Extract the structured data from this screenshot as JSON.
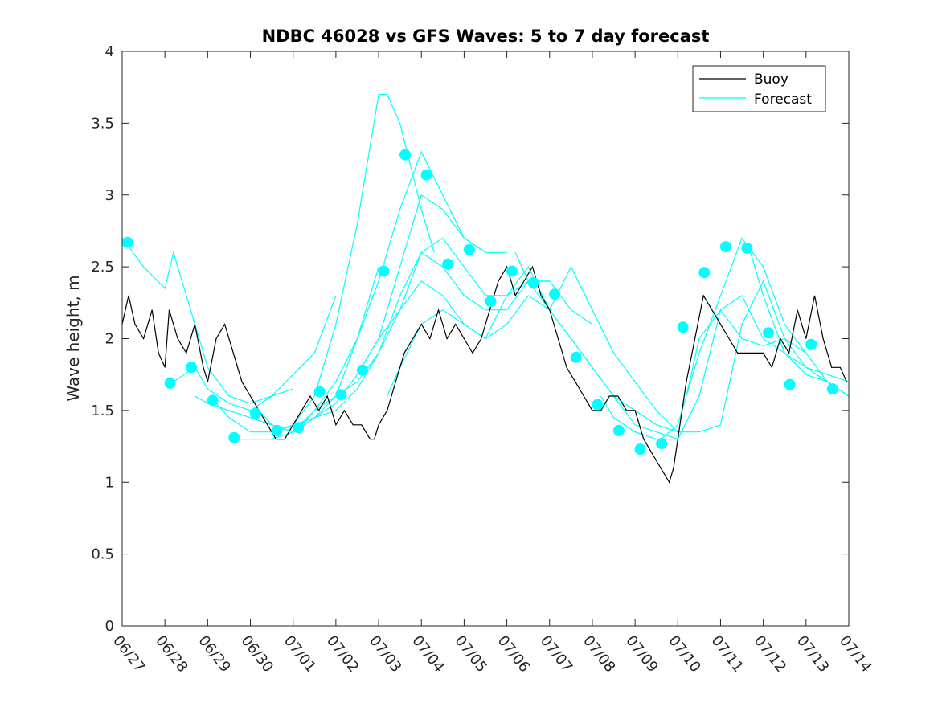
{
  "chart_data": {
    "type": "line",
    "title": "NDBC 46028 vs GFS Waves: 5 to 7 day forecast",
    "ylabel": "Wave height, m",
    "xlabel": "",
    "ylim": [
      0,
      4
    ],
    "xlim": [
      "06/27",
      "07/14"
    ],
    "yticks": [
      0,
      0.5,
      1,
      1.5,
      2,
      2.5,
      3,
      3.5,
      4
    ],
    "xtick_labels": [
      "06/27",
      "06/28",
      "06/29",
      "06/30",
      "07/01",
      "07/02",
      "07/03",
      "07/04",
      "07/05",
      "07/06",
      "07/07",
      "07/08",
      "07/09",
      "07/10",
      "07/11",
      "07/12",
      "07/13",
      "07/14"
    ],
    "grid": false,
    "legend": {
      "position": "top-right",
      "entries": [
        "Buoy",
        "Forecast"
      ]
    },
    "colors": {
      "buoy": "#000000",
      "forecast": "#00ffff"
    },
    "buoy": {
      "name": "Buoy",
      "x_days": [
        0.0,
        0.15,
        0.3,
        0.5,
        0.7,
        0.85,
        1.0,
        1.1,
        1.3,
        1.5,
        1.7,
        1.9,
        2.0,
        2.2,
        2.4,
        2.6,
        2.8,
        3.0,
        3.2,
        3.4,
        3.6,
        3.8,
        4.0,
        4.2,
        4.4,
        4.6,
        4.8,
        5.0,
        5.2,
        5.4,
        5.6,
        5.8,
        5.9,
        6.0,
        6.2,
        6.4,
        6.6,
        6.8,
        7.0,
        7.2,
        7.4,
        7.6,
        7.8,
        8.0,
        8.2,
        8.4,
        8.6,
        8.8,
        9.0,
        9.2,
        9.4,
        9.6,
        9.8,
        10.0,
        10.2,
        10.4,
        10.6,
        10.8,
        11.0,
        11.2,
        11.4,
        11.6,
        11.8,
        12.0,
        12.2,
        12.4,
        12.6,
        12.8,
        12.9,
        13.0,
        13.2,
        13.4,
        13.6,
        13.8,
        14.0,
        14.2,
        14.4,
        14.6,
        14.8,
        15.0,
        15.2,
        15.4,
        15.6,
        15.8,
        16.0,
        16.2,
        16.4,
        16.6,
        16.8,
        16.95
      ],
      "values": [
        2.1,
        2.3,
        2.1,
        2.0,
        2.2,
        1.9,
        1.8,
        2.2,
        2.0,
        1.9,
        2.1,
        1.8,
        1.7,
        2.0,
        2.1,
        1.9,
        1.7,
        1.6,
        1.5,
        1.4,
        1.3,
        1.3,
        1.4,
        1.5,
        1.6,
        1.5,
        1.6,
        1.4,
        1.5,
        1.4,
        1.4,
        1.3,
        1.3,
        1.4,
        1.5,
        1.7,
        1.9,
        2.0,
        2.1,
        2.0,
        2.2,
        2.0,
        2.1,
        2.0,
        1.9,
        2.0,
        2.2,
        2.4,
        2.5,
        2.3,
        2.4,
        2.5,
        2.3,
        2.2,
        2.0,
        1.8,
        1.7,
        1.6,
        1.5,
        1.5,
        1.6,
        1.6,
        1.5,
        1.5,
        1.3,
        1.2,
        1.1,
        1.0,
        1.1,
        1.3,
        1.7,
        2.0,
        2.3,
        2.2,
        2.1,
        2.0,
        1.9,
        1.9,
        1.9,
        1.9,
        1.8,
        2.0,
        1.9,
        2.2,
        2.0,
        2.3,
        2.0,
        1.8,
        1.8,
        1.7
      ]
    },
    "forecast_runs": [
      {
        "x_days": [
          0.0,
          0.5,
          1.0,
          1.2,
          1.5,
          2.0,
          2.5,
          3.0,
          3.5,
          4.0
        ],
        "values": [
          2.7,
          2.5,
          2.35,
          2.6,
          2.3,
          1.8,
          1.6,
          1.55,
          1.6,
          1.65
        ]
      },
      {
        "x_days": [
          1.2,
          1.7,
          2.0,
          2.5,
          3.0,
          3.5,
          4.0,
          4.5,
          5.0
        ],
        "values": [
          1.7,
          1.8,
          1.65,
          1.55,
          1.5,
          1.6,
          1.75,
          1.9,
          2.3
        ]
      },
      {
        "x_days": [
          1.7,
          2.0,
          2.5,
          3.0,
          3.5,
          4.0,
          4.5,
          5.0,
          5.5,
          6.0
        ],
        "values": [
          1.6,
          1.55,
          1.5,
          1.45,
          1.4,
          1.35,
          1.45,
          1.6,
          2.0,
          2.5
        ]
      },
      {
        "x_days": [
          2.2,
          2.5,
          3.0,
          3.5,
          4.0,
          4.5,
          5.0,
          5.5,
          6.0,
          6.2,
          6.5,
          7.0,
          7.3
        ],
        "values": [
          1.55,
          1.45,
          1.35,
          1.35,
          1.4,
          1.6,
          2.1,
          2.8,
          3.7,
          3.7,
          3.5,
          2.9,
          2.6
        ]
      },
      {
        "x_days": [
          2.7,
          3.0,
          3.5,
          4.0,
          4.5,
          5.0,
          5.5,
          6.0,
          6.5,
          7.0,
          7.5,
          8.0,
          8.5
        ],
        "values": [
          1.3,
          1.3,
          1.3,
          1.35,
          1.5,
          1.7,
          2.0,
          2.4,
          2.9,
          3.3,
          3.0,
          2.7,
          2.6
        ]
      },
      {
        "x_days": [
          3.2,
          3.5,
          4.0,
          4.5,
          5.0,
          5.5,
          6.0,
          6.5,
          7.0,
          7.5,
          8.0,
          8.5,
          9.0
        ],
        "values": [
          1.5,
          1.4,
          1.35,
          1.45,
          1.55,
          1.75,
          2.0,
          2.5,
          3.0,
          2.9,
          2.7,
          2.6,
          2.6
        ]
      },
      {
        "x_days": [
          3.6,
          4.0,
          4.5,
          5.0,
          5.5,
          6.0,
          6.5,
          7.0,
          7.5,
          8.0,
          8.5,
          9.0,
          9.5,
          10.0
        ],
        "values": [
          1.35,
          1.4,
          1.45,
          1.5,
          1.65,
          1.9,
          2.2,
          2.6,
          2.7,
          2.5,
          2.3,
          2.3,
          2.4,
          2.4
        ]
      },
      {
        "x_days": [
          4.2,
          4.5,
          5.0,
          5.5,
          6.0,
          6.5,
          7.0,
          7.5,
          8.0,
          8.5,
          9.0,
          9.5,
          10.0,
          10.5,
          11.0
        ],
        "values": [
          1.4,
          1.5,
          1.6,
          1.7,
          1.9,
          2.3,
          2.6,
          2.5,
          2.3,
          2.2,
          2.2,
          2.4,
          2.4,
          2.2,
          2.1
        ]
      },
      {
        "x_days": [
          5.6,
          6.0,
          6.5,
          7.0,
          7.5,
          8.0,
          8.5,
          9.0,
          9.5,
          10.0,
          10.5,
          11.0,
          11.5,
          12.0,
          12.5,
          13.0
        ],
        "values": [
          1.8,
          2.0,
          2.2,
          2.4,
          2.3,
          2.1,
          2.0,
          2.3,
          2.5,
          2.2,
          2.0,
          1.8,
          1.6,
          1.5,
          1.4,
          1.35
        ]
      },
      {
        "x_days": [
          6.2,
          6.5,
          7.0,
          7.5,
          8.0,
          8.5,
          9.0,
          9.5,
          10.0,
          10.5,
          11.0,
          11.5,
          12.0,
          12.5,
          13.0
        ],
        "values": [
          1.6,
          1.8,
          2.1,
          2.2,
          2.1,
          2.0,
          2.1,
          2.3,
          2.2,
          2.0,
          1.8,
          1.6,
          1.4,
          1.35,
          1.3
        ]
      },
      {
        "x_days": [
          9.2,
          9.5,
          10.0,
          10.5,
          11.0,
          11.5,
          12.0,
          12.5,
          13.0,
          13.5,
          14.0,
          14.5,
          15.0,
          15.5,
          16.0
        ],
        "values": [
          2.6,
          2.4,
          2.2,
          2.5,
          2.2,
          1.9,
          1.7,
          1.5,
          1.35,
          1.35,
          1.4,
          2.1,
          2.4,
          2.0,
          1.9
        ]
      },
      {
        "x_days": [
          11.2,
          11.5,
          12.0,
          12.5,
          13.0,
          13.5,
          14.0,
          14.5,
          15.0,
          15.5,
          16.0,
          16.5,
          17.0
        ],
        "values": [
          1.6,
          1.45,
          1.35,
          1.3,
          1.3,
          1.6,
          2.2,
          2.3,
          2.0,
          1.9,
          1.8,
          1.7,
          1.6
        ]
      },
      {
        "x_days": [
          12.6,
          13.0,
          13.5,
          14.0,
          14.5,
          15.0,
          15.5,
          16.0,
          16.5,
          17.0
        ],
        "values": [
          1.3,
          1.4,
          1.9,
          2.3,
          2.7,
          2.5,
          2.1,
          1.9,
          1.7,
          1.6
        ]
      },
      {
        "x_days": [
          13.2,
          13.5,
          14.0,
          14.5,
          15.0,
          15.5,
          16.0,
          16.5,
          17.0
        ],
        "values": [
          1.6,
          2.0,
          2.2,
          2.0,
          1.95,
          2.0,
          1.8,
          1.75,
          1.7
        ]
      },
      {
        "x_days": [
          14.7,
          15.0,
          15.5,
          16.0,
          16.5,
          17.0
        ],
        "values": [
          2.6,
          2.3,
          1.9,
          1.75,
          1.7,
          1.6
        ]
      }
    ],
    "forecast_points": {
      "x_days": [
        0.12,
        1.12,
        1.62,
        2.12,
        2.62,
        3.12,
        3.62,
        4.12,
        4.62,
        5.12,
        5.62,
        6.12,
        6.62,
        7.12,
        7.62,
        8.12,
        8.62,
        9.12,
        9.62,
        10.12,
        10.62,
        11.12,
        11.62,
        12.12,
        12.62,
        13.12,
        13.62,
        14.12,
        14.62,
        15.12,
        15.62,
        16.12,
        16.62
      ],
      "values": [
        2.67,
        1.69,
        1.8,
        1.57,
        1.31,
        1.48,
        1.36,
        1.38,
        1.63,
        1.61,
        1.78,
        2.47,
        3.28,
        3.14,
        2.52,
        2.62,
        2.26,
        2.47,
        2.39,
        2.31,
        1.87,
        1.54,
        1.36,
        1.23,
        1.27,
        2.08,
        2.46,
        2.64,
        2.63,
        2.04,
        1.68,
        1.96,
        1.65
      ]
    }
  }
}
